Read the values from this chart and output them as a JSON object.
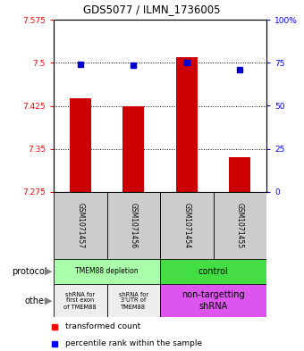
{
  "title": "GDS5077 / ILMN_1736005",
  "samples": [
    "GSM1071457",
    "GSM1071456",
    "GSM1071454",
    "GSM1071455"
  ],
  "bar_values": [
    7.438,
    7.425,
    7.51,
    7.335
  ],
  "bar_base": 7.275,
  "dot_values": [
    7.498,
    7.495,
    7.5,
    7.488
  ],
  "ylim_left": [
    7.275,
    7.575
  ],
  "yticks_left": [
    7.275,
    7.35,
    7.425,
    7.5,
    7.575
  ],
  "ytick_labels_left": [
    "7.275",
    "7.35",
    "7.425",
    "7.5",
    "7.575"
  ],
  "yticks_right_pct": [
    0,
    25,
    50,
    75,
    100
  ],
  "ytick_labels_right": [
    "0",
    "25",
    "50",
    "75",
    "100%"
  ],
  "bar_color": "#cc0000",
  "dot_color": "#0000cc",
  "gridline_values": [
    7.35,
    7.425,
    7.5
  ],
  "legend_red": "transformed count",
  "legend_blue": "percentile rank within the sample",
  "protocol_depletion_color": "#aaffaa",
  "protocol_control_color": "#44dd44",
  "other_gray_color": "#eeeeee",
  "other_pink_color": "#dd55ee"
}
